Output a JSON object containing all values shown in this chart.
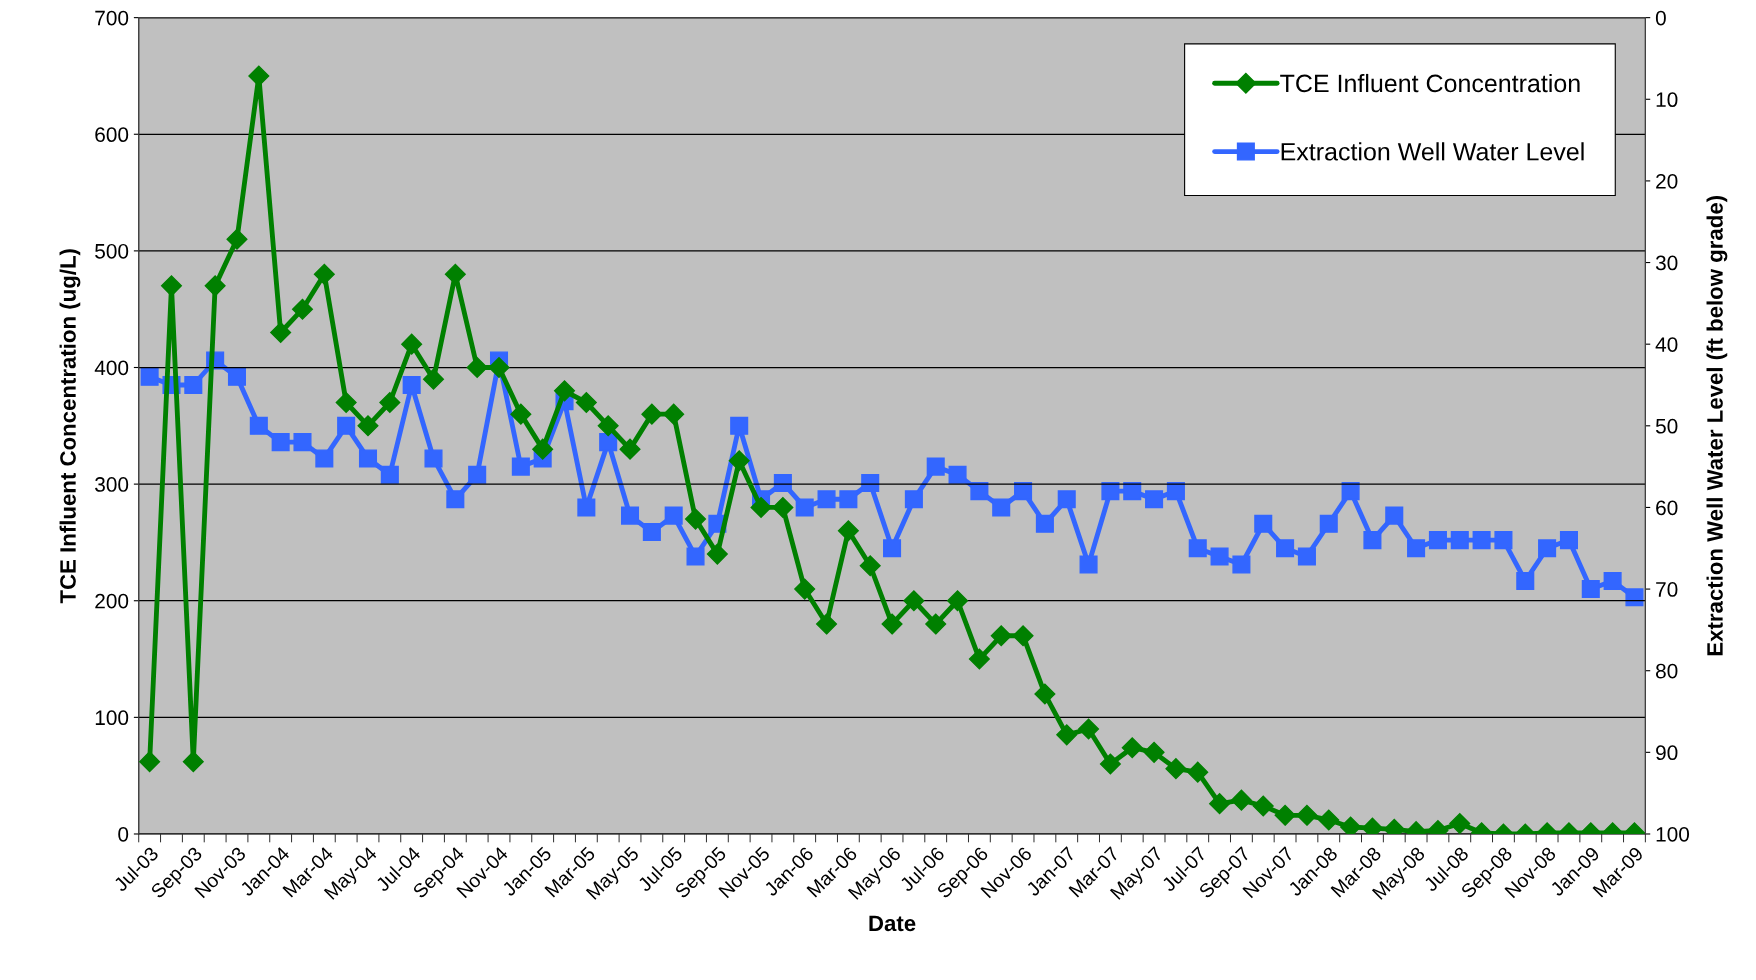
{
  "chart_data": {
    "type": "line",
    "xlabel": "Date",
    "ylabel": "TCE Influent Concentration (ug/L)",
    "y2label": "Extraction Well Water Level (ft below grade)",
    "categories": [
      "Jul-03",
      null,
      "Sep-03",
      null,
      "Nov-03",
      null,
      "Jan-04",
      null,
      "Mar-04",
      null,
      "May-04",
      null,
      "Jul-04",
      null,
      "Sep-04",
      null,
      "Nov-04",
      null,
      "Jan-05",
      null,
      "Mar-05",
      null,
      "May-05",
      null,
      "Jul-05",
      null,
      "Sep-05",
      null,
      "Nov-05",
      null,
      "Jan-06",
      null,
      "Mar-06",
      null,
      "May-06",
      null,
      "Jul-06",
      null,
      "Sep-06",
      null,
      "Nov-06",
      null,
      "Jan-07",
      null,
      "Mar-07",
      null,
      "May-07",
      null,
      "Jul-07",
      null,
      "Sep-07",
      null,
      "Nov-07",
      null,
      "Jan-08",
      null,
      "Mar-08",
      null,
      "May-08",
      null,
      "Jul-08",
      null,
      "Sep-08",
      null,
      "Nov-08",
      null,
      "Jan-09",
      null,
      "Mar-09"
    ],
    "series": [
      {
        "name": "TCE Influent Concentration",
        "color": "#008000",
        "marker": "diamond",
        "values": [
          62,
          470,
          62,
          470,
          510,
          650,
          430,
          450,
          480,
          370,
          350,
          370,
          420,
          390,
          480,
          400,
          400,
          360,
          330,
          380,
          370,
          350,
          330,
          360,
          360,
          270,
          240,
          320,
          280,
          280,
          210,
          180,
          260,
          230,
          180,
          200,
          180,
          200,
          150,
          170,
          170,
          120,
          85,
          90,
          60,
          74,
          70,
          56,
          53,
          26,
          29,
          24,
          16,
          16,
          12,
          6,
          5,
          4,
          2,
          3,
          9,
          1,
          0,
          0,
          1,
          1,
          1,
          1,
          1
        ]
      },
      {
        "name": "Extraction Well Water Level",
        "color": "#3366ff",
        "marker": "square",
        "axis": "y2",
        "values": [
          44,
          45,
          45,
          42,
          44,
          50,
          52,
          52,
          54,
          50,
          54,
          56,
          45,
          54,
          59,
          56,
          42,
          55,
          54,
          47,
          60,
          52,
          61,
          63,
          61,
          66,
          62,
          50,
          59,
          57,
          60,
          59,
          59,
          57,
          65,
          59,
          55,
          56,
          58,
          60,
          58,
          62,
          59,
          67,
          58,
          58,
          59,
          58,
          65,
          66,
          67,
          62,
          65,
          66,
          62,
          58,
          64,
          61,
          65,
          64,
          64,
          64,
          64,
          69,
          65,
          64,
          70,
          69,
          71
        ]
      }
    ],
    "ylim": [
      0,
      700
    ],
    "yticks": [
      0,
      100,
      200,
      300,
      400,
      500,
      600,
      700
    ],
    "y2lim": [
      100,
      0
    ],
    "y2ticks": [
      0,
      10,
      20,
      30,
      40,
      50,
      60,
      70,
      80,
      90,
      100
    ],
    "grid": "y",
    "legend": "top right",
    "line_style": "solid"
  }
}
